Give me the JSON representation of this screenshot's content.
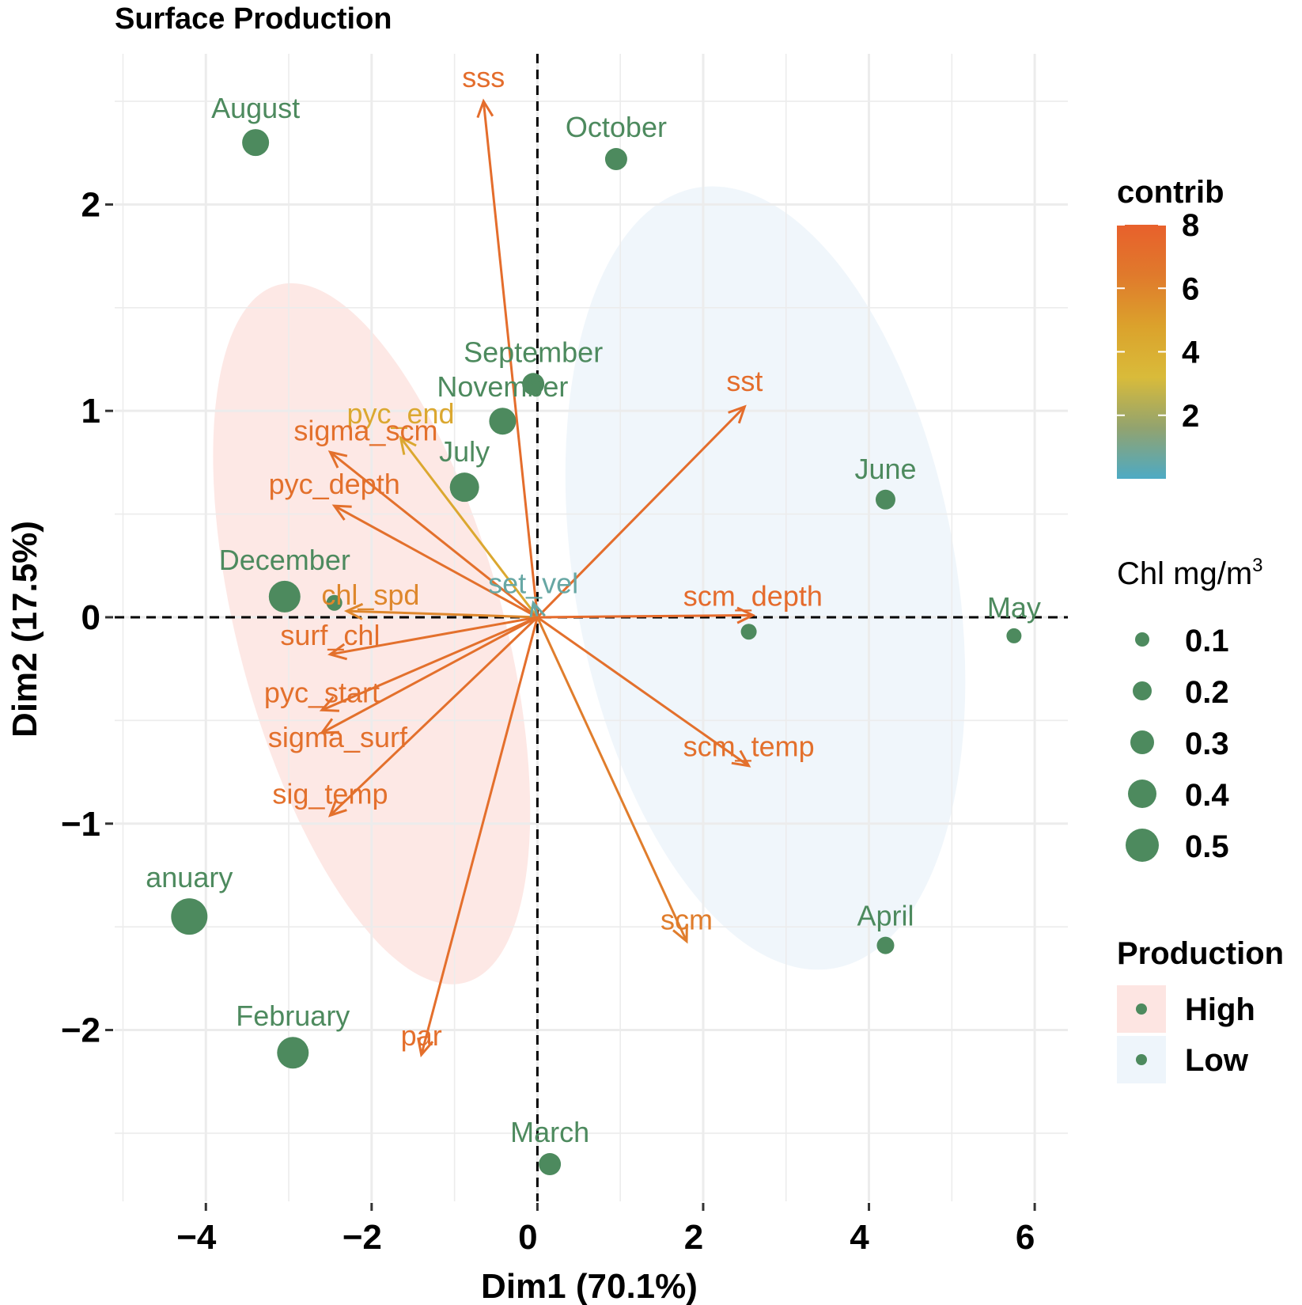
{
  "title": "Surface Production",
  "chart_data": {
    "type": "scatter",
    "title": "Surface Production",
    "xlabel": "Dim1 (70.1%)",
    "ylabel": "Dim2 (17.5%)",
    "xlim": [
      -5.1,
      6.4
    ],
    "ylim": [
      -2.83,
      2.73
    ],
    "x_ticks": [
      -4,
      -2,
      0,
      2,
      4,
      6
    ],
    "y_ticks": [
      -2,
      -1,
      0,
      1,
      2
    ],
    "x_tick_labels": [
      "−4",
      "−2",
      "0",
      "2",
      "4",
      "6"
    ],
    "y_tick_labels": [
      "−2",
      "−1",
      "0",
      "1",
      "2"
    ],
    "grid": true,
    "reference_lines": "dashed lines at x = 0 and y = 0",
    "individuals": [
      {
        "label": "August",
        "x": -3.4,
        "y": 2.3,
        "chl": 0.3
      },
      {
        "label": "October",
        "x": 0.95,
        "y": 2.22,
        "chl": 0.2
      },
      {
        "label": "September",
        "x": -0.05,
        "y": 1.13,
        "chl": 0.2
      },
      {
        "label": "November",
        "x": -0.42,
        "y": 0.95,
        "chl": 0.3
      },
      {
        "label": "July",
        "x": -0.88,
        "y": 0.63,
        "chl": 0.35
      },
      {
        "label": "June",
        "x": 4.2,
        "y": 0.57,
        "chl": 0.15
      },
      {
        "label": "December",
        "x": -3.05,
        "y": 0.1,
        "chl": 0.4
      },
      {
        "label": "May",
        "x": 5.75,
        "y": -0.09,
        "chl": 0.05
      },
      {
        "label": "anuary",
        "x": -4.2,
        "y": -1.45,
        "chl": 0.5
      },
      {
        "label": "April",
        "x": 4.2,
        "y": -1.59,
        "chl": 0.1
      },
      {
        "label": "February",
        "x": -2.95,
        "y": -2.11,
        "chl": 0.4
      },
      {
        "label": "March",
        "x": 0.15,
        "y": -2.65,
        "chl": 0.2
      }
    ],
    "extra_points": [
      {
        "x": -2.45,
        "y": 0.07,
        "chl": 0.1
      },
      {
        "x": 2.55,
        "y": -0.07,
        "chl": 0.1
      }
    ],
    "variables": [
      {
        "name": "sss",
        "x": -0.65,
        "y": 2.5,
        "contrib": 7.2
      },
      {
        "name": "sst",
        "x": 2.5,
        "y": 1.02,
        "contrib": 7.2
      },
      {
        "name": "pyc_end",
        "x": -1.65,
        "y": 0.87,
        "contrib": 4.4
      },
      {
        "name": "sigma_scm",
        "x": -2.5,
        "y": 0.8,
        "contrib": 7.0
      },
      {
        "name": "pyc_depth",
        "x": -2.45,
        "y": 0.54,
        "contrib": 7.0
      },
      {
        "name": "chl_spd",
        "x": -2.3,
        "y": 0.03,
        "contrib": 5.9
      },
      {
        "name": "set_vel",
        "x": -0.05,
        "y": 0.07,
        "contrib": 0.6
      },
      {
        "name": "scm_depth",
        "x": 2.6,
        "y": 0.01,
        "contrib": 7.3
      },
      {
        "name": "surf_chl",
        "x": -2.5,
        "y": -0.18,
        "contrib": 7.0
      },
      {
        "name": "pyc_start",
        "x": -2.6,
        "y": -0.45,
        "contrib": 7.0
      },
      {
        "name": "sigma_surf",
        "x": -2.6,
        "y": -0.56,
        "contrib": 7.0
      },
      {
        "name": "scm_temp",
        "x": 2.55,
        "y": -0.72,
        "contrib": 7.0
      },
      {
        "name": "sig_temp",
        "x": -2.5,
        "y": -0.96,
        "contrib": 7.0
      },
      {
        "name": "scm",
        "x": 1.8,
        "y": -1.57,
        "contrib": 6.3
      },
      {
        "name": "par",
        "x": -1.4,
        "y": -2.12,
        "contrib": 7.1
      }
    ],
    "ellipses": [
      {
        "group": "High",
        "cx": -2.0,
        "cy": -0.08,
        "rx": 1.6,
        "ry": 1.75,
        "angle": -15
      },
      {
        "group": "Low",
        "cx": 2.75,
        "cy": 0.19,
        "rx": 2.3,
        "ry": 1.92,
        "angle": -10
      }
    ],
    "legend": {
      "contrib": {
        "title": "contrib",
        "ticks": [
          "8",
          "6",
          "4",
          "2"
        ],
        "tick_values": [
          8,
          6,
          4,
          2
        ],
        "range": [
          0,
          8
        ],
        "colors": [
          "#e8602c",
          "#e07a2c",
          "#dba22c",
          "#d9bb3a",
          "#92a36f",
          "#4daac4"
        ]
      },
      "chl": {
        "title": "Chl mg/m",
        "superscript": "3",
        "labels": [
          "0.1",
          "0.2",
          "0.3",
          "0.4",
          "0.5"
        ],
        "values": [
          0.1,
          0.2,
          0.3,
          0.4,
          0.5
        ]
      },
      "production": {
        "title": "Production",
        "items": [
          {
            "label": "High",
            "fill": "#fde5e2"
          },
          {
            "label": "Low",
            "fill": "#eef5fb"
          }
        ]
      }
    },
    "point_color": "#4d8a5e"
  }
}
